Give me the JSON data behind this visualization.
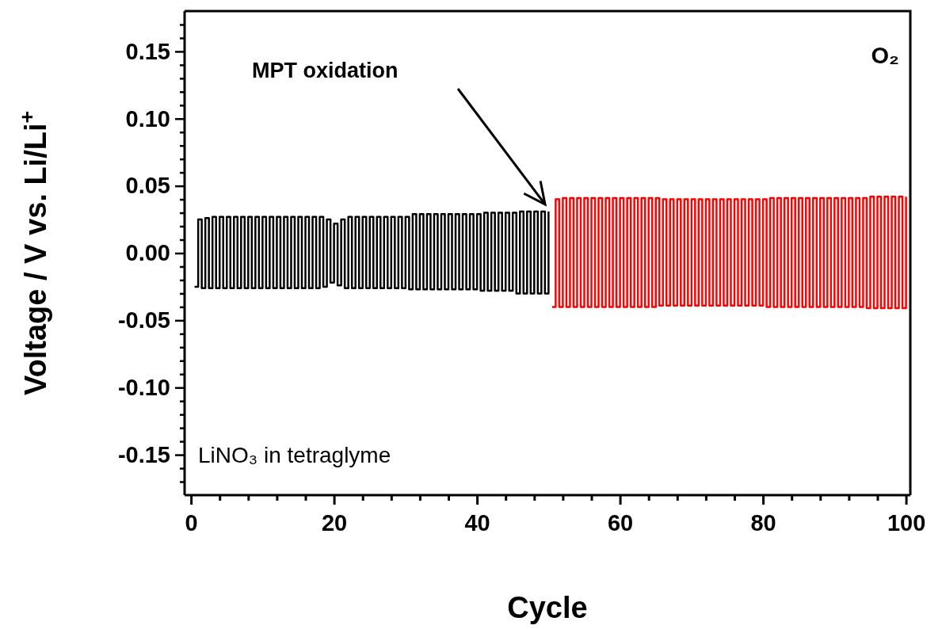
{
  "chart_data": {
    "type": "step",
    "xlabel": "Cycle",
    "ylabel": "Voltage / V vs. Li/Li$^{+}$",
    "xlim": [
      -0.9,
      100.6
    ],
    "ylim": [
      -0.18,
      0.18
    ],
    "xticks": [
      0,
      {
        "value": 4,
        "label": null
      },
      {
        "value": 8,
        "label": null
      },
      {
        "value": 12,
        "label": null
      },
      {
        "value": 16,
        "label": null
      },
      20,
      {
        "value": 24,
        "label": null
      },
      {
        "value": 28,
        "label": null
      },
      {
        "value": 32,
        "label": null
      },
      {
        "value": 36,
        "label": null
      },
      40,
      {
        "value": 44,
        "label": null
      },
      {
        "value": 48,
        "label": null
      },
      {
        "value": 52,
        "label": null
      },
      {
        "value": 56,
        "label": null
      },
      60,
      {
        "value": 64,
        "label": null
      },
      {
        "value": 68,
        "label": null
      },
      {
        "value": 72,
        "label": null
      },
      {
        "value": 76,
        "label": null
      },
      80,
      {
        "value": 84,
        "label": null
      },
      {
        "value": 88,
        "label": null
      },
      {
        "value": 92,
        "label": null
      },
      {
        "value": 96,
        "label": null
      },
      100
    ],
    "yticks": [
      {
        "value": -0.17,
        "label": null
      },
      {
        "value": -0.16,
        "label": null
      },
      -0.15,
      {
        "value": -0.14,
        "label": null
      },
      {
        "value": -0.13,
        "label": null
      },
      {
        "value": -0.12,
        "label": null
      },
      {
        "value": -0.11,
        "label": null
      },
      {
        "value": -0.1,
        "label": "-0.10"
      },
      {
        "value": -0.09,
        "label": null
      },
      {
        "value": -0.08,
        "label": null
      },
      {
        "value": -0.07,
        "label": null
      },
      {
        "value": -0.06,
        "label": null
      },
      -0.05,
      {
        "value": -0.04,
        "label": null
      },
      {
        "value": -0.03,
        "label": null
      },
      {
        "value": -0.02,
        "label": null
      },
      {
        "value": -0.01,
        "label": null
      },
      {
        "value": 0,
        "label": "0.00"
      },
      {
        "value": 0.01,
        "label": null
      },
      {
        "value": 0.02,
        "label": null
      },
      {
        "value": 0.03,
        "label": null
      },
      {
        "value": 0.04,
        "label": null
      },
      0.05,
      {
        "value": 0.06,
        "label": null
      },
      {
        "value": 0.07,
        "label": null
      },
      {
        "value": 0.08,
        "label": null
      },
      {
        "value": 0.09,
        "label": null
      },
      {
        "value": 0.1,
        "label": "0.10"
      },
      {
        "value": 0.11,
        "label": null
      },
      {
        "value": 0.12,
        "label": null
      },
      {
        "value": 0.13,
        "label": null
      },
      {
        "value": 0.14,
        "label": null
      },
      0.15,
      {
        "value": 0.16,
        "label": null
      },
      {
        "value": 0.17,
        "label": null
      }
    ],
    "grid": false,
    "marker": "none",
    "line_style": "solid",
    "annotations": [
      "MPT oxidation",
      "O₂",
      "LiNO₃ in tetraglyme"
    ],
    "series": [
      {
        "color": "#000000",
        "x": [
          0.5,
          1,
          1.5,
          2,
          2.5,
          3,
          3.5,
          4,
          4.5,
          5,
          5.5,
          6,
          6.5,
          7,
          7.5,
          8,
          8.5,
          9,
          9.5,
          10,
          10.5,
          11,
          11.5,
          12,
          12.5,
          13,
          13.5,
          14,
          14.5,
          15,
          15.5,
          16,
          16.5,
          17,
          17.5,
          18,
          18.5,
          19,
          19.5,
          20,
          20.5,
          21,
          21.5,
          22,
          22.5,
          23,
          23.5,
          24,
          24.5,
          25,
          25.5,
          26,
          26.5,
          27,
          27.5,
          28,
          28.5,
          29,
          29.5,
          30,
          30.5,
          31,
          31.5,
          32,
          32.5,
          33,
          33.5,
          34,
          34.5,
          35,
          35.5,
          36,
          36.5,
          37,
          37.5,
          38,
          38.5,
          39,
          39.5,
          40,
          40.5,
          41,
          41.5,
          42,
          42.5,
          43,
          43.5,
          44,
          44.5,
          45,
          45.5,
          46,
          46.5,
          47,
          47.5,
          48,
          48.5,
          49,
          49.5,
          50
        ],
        "values": [
          -0.025,
          0.025,
          -0.026,
          0.026,
          -0.026,
          0.027,
          -0.026,
          0.027,
          -0.026,
          0.027,
          -0.026,
          0.027,
          -0.026,
          0.027,
          -0.026,
          0.027,
          -0.026,
          0.027,
          -0.026,
          0.027,
          -0.026,
          0.027,
          -0.026,
          0.027,
          -0.026,
          0.027,
          -0.026,
          0.027,
          -0.026,
          0.027,
          -0.026,
          0.027,
          -0.026,
          0.027,
          -0.026,
          0.027,
          -0.025,
          0.025,
          -0.022,
          0.022,
          -0.024,
          0.025,
          -0.026,
          0.027,
          -0.026,
          0.027,
          -0.026,
          0.027,
          -0.026,
          0.027,
          -0.026,
          0.027,
          -0.026,
          0.027,
          -0.026,
          0.027,
          -0.026,
          0.027,
          -0.026,
          0.027,
          -0.027,
          0.029,
          -0.027,
          0.029,
          -0.027,
          0.029,
          -0.027,
          0.029,
          -0.027,
          0.029,
          -0.027,
          0.029,
          -0.027,
          0.029,
          -0.027,
          0.029,
          -0.027,
          0.029,
          -0.027,
          0.029,
          -0.028,
          0.03,
          -0.028,
          0.03,
          -0.028,
          0.03,
          -0.028,
          0.03,
          -0.028,
          0.03,
          -0.03,
          0.031,
          -0.03,
          0.031,
          -0.03,
          0.031,
          -0.03,
          0.031,
          -0.03,
          0.031
        ]
      },
      {
        "color": "#ff0000",
        "x": [
          50.5,
          51,
          51.5,
          52,
          52.5,
          53,
          53.5,
          54,
          54.5,
          55,
          55.5,
          56,
          56.5,
          57,
          57.5,
          58,
          58.5,
          59,
          59.5,
          60,
          60.5,
          61,
          61.5,
          62,
          62.5,
          63,
          63.5,
          64,
          64.5,
          65,
          65.5,
          66,
          66.5,
          67,
          67.5,
          68,
          68.5,
          69,
          69.5,
          70,
          70.5,
          71,
          71.5,
          72,
          72.5,
          73,
          73.5,
          74,
          74.5,
          75,
          75.5,
          76,
          76.5,
          77,
          77.5,
          78,
          78.5,
          79,
          79.5,
          80,
          80.5,
          81,
          81.5,
          82,
          82.5,
          83,
          83.5,
          84,
          84.5,
          85,
          85.5,
          86,
          86.5,
          87,
          87.5,
          88,
          88.5,
          89,
          89.5,
          90,
          90.5,
          91,
          91.5,
          92,
          92.5,
          93,
          93.5,
          94,
          94.5,
          95,
          95.5,
          96,
          96.5,
          97,
          97.5,
          98,
          98.5,
          99,
          99.5,
          100
        ],
        "values": [
          -0.04,
          0.04,
          -0.04,
          0.041,
          -0.04,
          0.041,
          -0.04,
          0.041,
          -0.04,
          0.041,
          -0.04,
          0.041,
          -0.04,
          0.041,
          -0.04,
          0.041,
          -0.04,
          0.041,
          -0.04,
          0.041,
          -0.04,
          0.041,
          -0.04,
          0.041,
          -0.04,
          0.041,
          -0.04,
          0.041,
          -0.04,
          0.041,
          -0.039,
          0.04,
          -0.039,
          0.04,
          -0.039,
          0.04,
          -0.039,
          0.04,
          -0.039,
          0.04,
          -0.039,
          0.04,
          -0.039,
          0.04,
          -0.039,
          0.04,
          -0.039,
          0.04,
          -0.039,
          0.04,
          -0.039,
          0.04,
          -0.039,
          0.04,
          -0.039,
          0.04,
          -0.039,
          0.04,
          -0.039,
          0.04,
          -0.04,
          0.041,
          -0.04,
          0.041,
          -0.04,
          0.041,
          -0.04,
          0.041,
          -0.04,
          0.041,
          -0.04,
          0.041,
          -0.04,
          0.041,
          -0.04,
          0.041,
          -0.04,
          0.041,
          -0.04,
          0.041,
          -0.04,
          0.041,
          -0.04,
          0.041,
          -0.04,
          0.041,
          -0.04,
          0.041,
          -0.041,
          0.042,
          -0.041,
          0.042,
          -0.041,
          0.042,
          -0.041,
          0.042,
          -0.041,
          0.042,
          -0.041,
          0.042
        ]
      }
    ]
  }
}
